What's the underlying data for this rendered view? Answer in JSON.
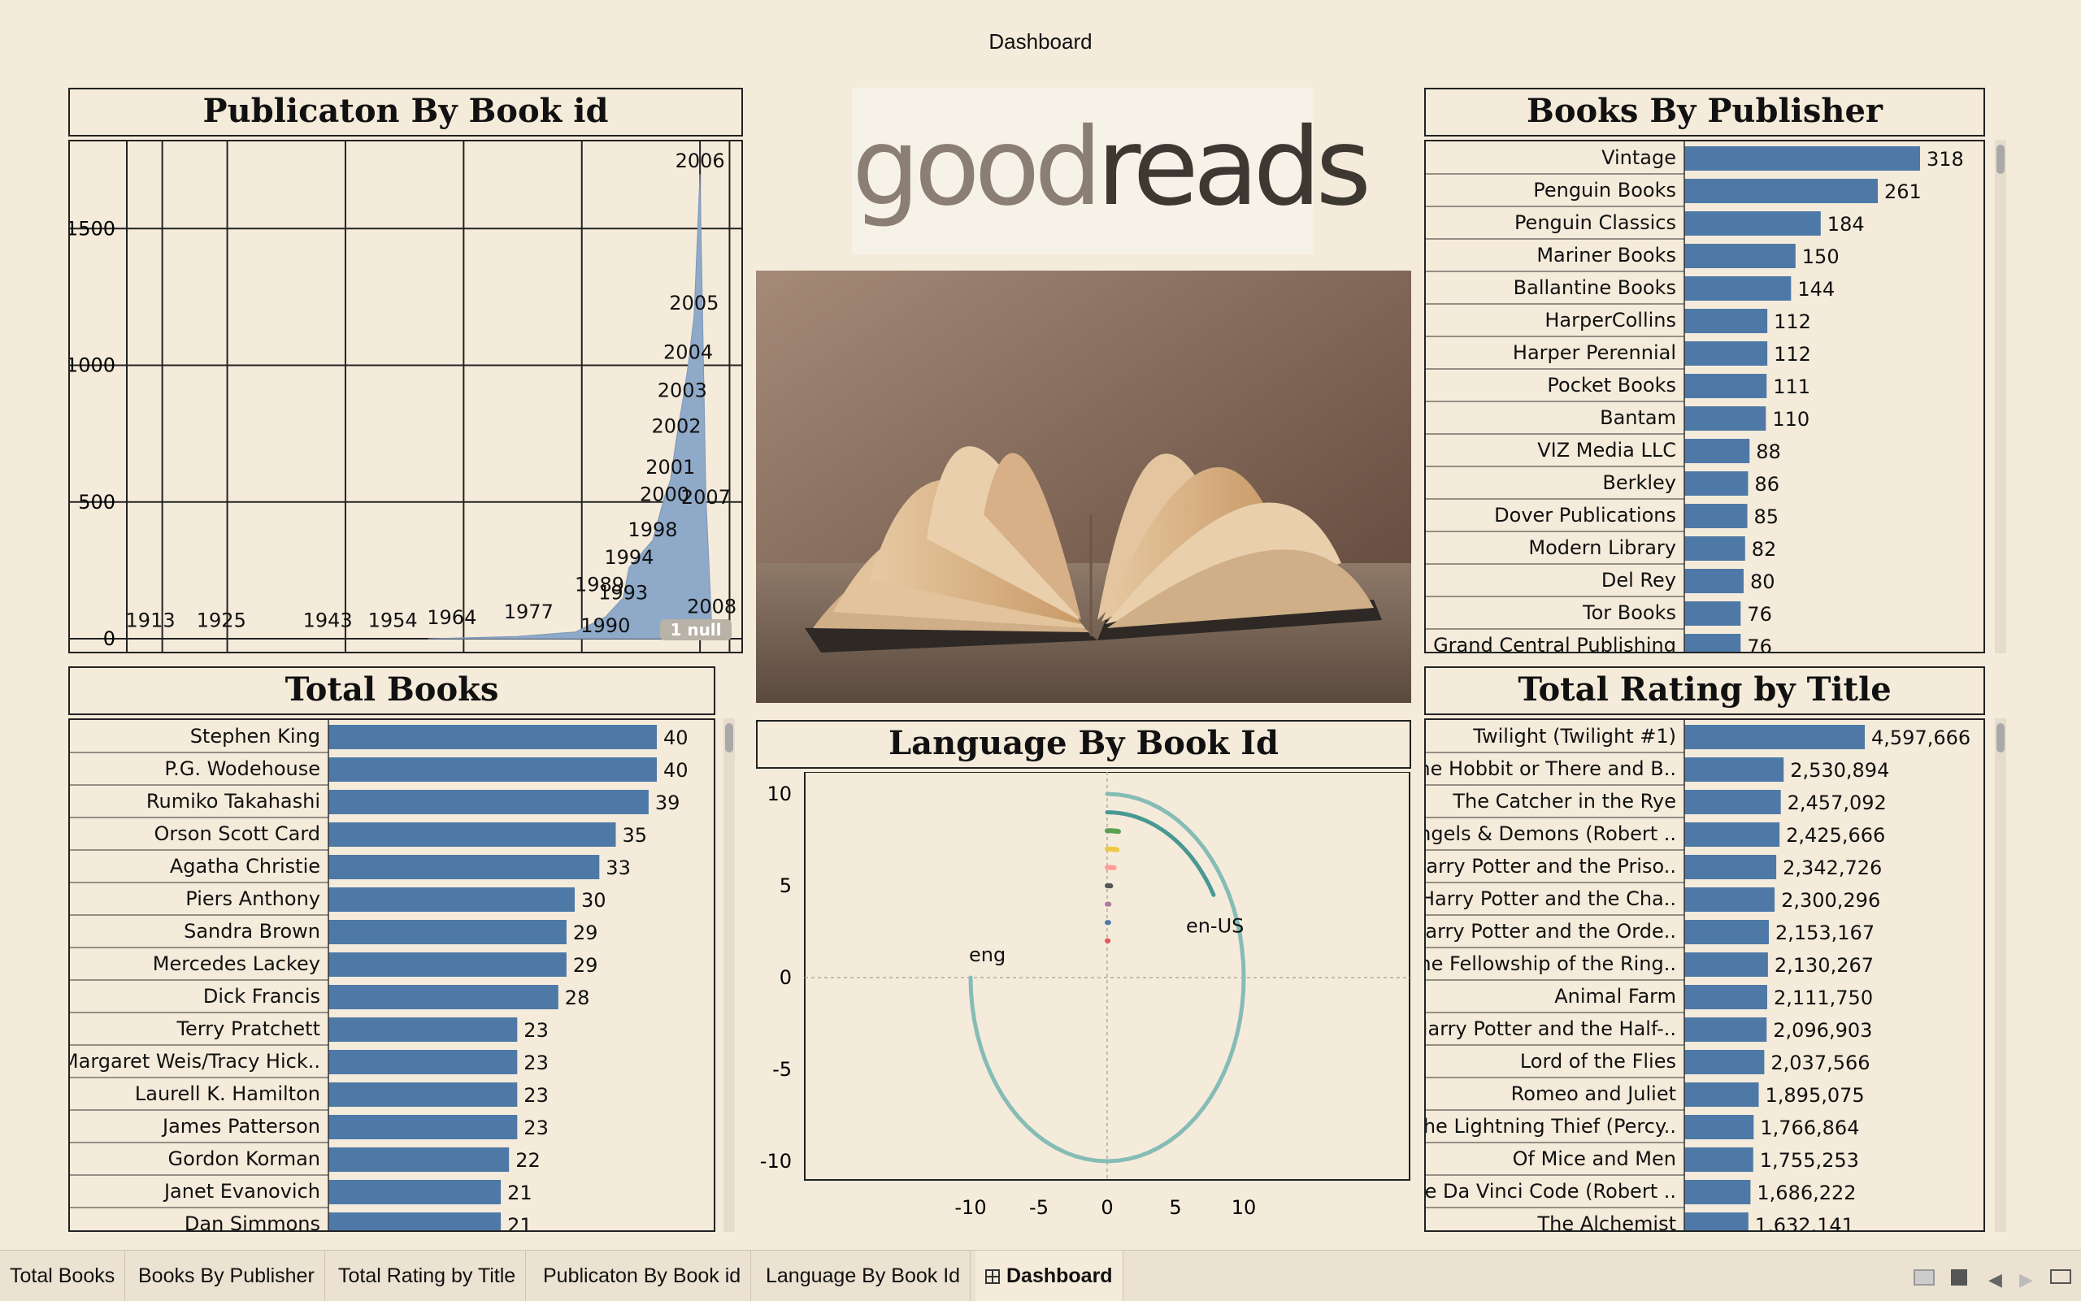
{
  "dashboard_title": "Dashboard",
  "panels": {
    "publication": "Publicaton By Book id",
    "publisher": "Books By Publisher",
    "total_books": "Total Books",
    "language": "Language By Book Id",
    "rating": "Total Rating by Title"
  },
  "logo": {
    "part1": "good",
    "part2": "reads"
  },
  "photo": {
    "subject": "open-book-photo"
  },
  "tabs": [
    "Total Books",
    "Books By Publisher",
    "Total Rating by Title",
    "Publicaton By Book id",
    "Language By Book Id",
    "Dashboard"
  ],
  "active_tab": "Dashboard",
  "icons": {
    "tab_active": "dashboard-grid-icon",
    "nav": [
      "layout-icon",
      "square-icon",
      "prev-icon",
      "next-icon",
      "present-icon"
    ]
  },
  "colors": {
    "bar": "#4e79a7",
    "area": "#8fa9c8",
    "background": "#f5ebda",
    "lang_main": "#86bcb6",
    "lang_second": "#499894"
  },
  "chart_data": [
    {
      "type": "area",
      "title": "Publicaton By Book id",
      "ylim": [
        0,
        1700
      ],
      "y_ticks": [
        0,
        500,
        1000,
        1500
      ],
      "series": [
        {
          "points": [
            {
              "x": 1990,
              "y": 80
            },
            {
              "x": 1993,
              "y": 150
            },
            {
              "x": 1994,
              "y": 260
            },
            {
              "x": 1998,
              "y": 360
            },
            {
              "x": 2000,
              "y": 520
            },
            {
              "x": 2001,
              "y": 580
            },
            {
              "x": 2002,
              "y": 730
            },
            {
              "x": 2003,
              "y": 860
            },
            {
              "x": 2004,
              "y": 1000
            },
            {
              "x": 2005,
              "y": 1180
            },
            {
              "x": 2006,
              "y": 1700
            },
            {
              "x": 2007,
              "y": 520
            },
            {
              "x": 2008,
              "y": 40
            }
          ]
        }
      ],
      "labels": [
        {
          "text": "2006",
          "x": 2006,
          "y": 1700
        },
        {
          "text": "2005",
          "x": 2005,
          "y": 1180
        },
        {
          "text": "2004",
          "x": 2004,
          "y": 1000
        },
        {
          "text": "2003",
          "x": 2003,
          "y": 860
        },
        {
          "text": "2002",
          "x": 2002,
          "y": 730
        },
        {
          "text": "2001",
          "x": 2001,
          "y": 580
        },
        {
          "text": "2000",
          "x": 2000,
          "y": 480
        },
        {
          "text": "2007",
          "x": 2007,
          "y": 470
        },
        {
          "text": "1998",
          "x": 1998,
          "y": 350
        },
        {
          "text": "1994",
          "x": 1994,
          "y": 250
        },
        {
          "text": "1989",
          "x": 1989,
          "y": 150
        },
        {
          "text": "1993",
          "x": 1993,
          "y": 120
        },
        {
          "text": "1977",
          "x": 1977,
          "y": 50
        },
        {
          "text": "2008",
          "x": 2008,
          "y": 70
        },
        {
          "text": "1913",
          "x": 1913,
          "y": 20
        },
        {
          "text": "1925",
          "x": 1925,
          "y": 20
        },
        {
          "text": "1943",
          "x": 1943,
          "y": 20
        },
        {
          "text": "1954",
          "x": 1954,
          "y": 20
        },
        {
          "text": "1964",
          "x": 1964,
          "y": 30
        },
        {
          "text": "1990",
          "x": 1990,
          "y": 0
        }
      ],
      "null_badge": "1 null"
    },
    {
      "type": "bar",
      "title": "Books By Publisher",
      "categories": [
        "Vintage",
        "Penguin Books",
        "Penguin Classics",
        "Mariner Books",
        "Ballantine Books",
        "HarperCollins",
        "Harper Perennial",
        "Pocket Books",
        "Bantam",
        "VIZ Media LLC",
        "Berkley",
        "Dover Publications",
        "Modern Library",
        "Del Rey",
        "Tor Books",
        "Grand Central Publishing"
      ],
      "values": [
        318,
        261,
        184,
        150,
        144,
        112,
        112,
        111,
        110,
        88,
        86,
        85,
        82,
        80,
        76,
        76
      ],
      "labels": [
        "318",
        "261",
        "184",
        "150",
        "144",
        "112",
        "112",
        "111",
        "110",
        "88",
        "86",
        "85",
        "82",
        "80",
        "76",
        "76"
      ],
      "max": 318
    },
    {
      "type": "bar",
      "title": "Total Books",
      "categories": [
        "Stephen King",
        "P.G. Wodehouse",
        "Rumiko Takahashi",
        "Orson Scott Card",
        "Agatha Christie",
        "Piers Anthony",
        "Sandra Brown",
        "Mercedes Lackey",
        "Dick Francis",
        "Terry Pratchett",
        "Margaret Weis/Tracy Hick..",
        "Laurell K. Hamilton",
        "James Patterson",
        "Gordon Korman",
        "Janet Evanovich",
        "Dan Simmons"
      ],
      "values": [
        40,
        40,
        39,
        35,
        33,
        30,
        29,
        29,
        28,
        23,
        23,
        23,
        23,
        22,
        21,
        21
      ],
      "labels": [
        "40",
        "40",
        "39",
        "35",
        "33",
        "30",
        "29",
        "29",
        "28",
        "23",
        "23",
        "23",
        "23",
        "22",
        "21",
        "21"
      ],
      "max": 40
    },
    {
      "type": "bar",
      "title": "Total Rating by Title",
      "categories": [
        "Twilight (Twilight  #1)",
        "The Hobbit  or There and B..",
        "The Catcher in the Rye",
        "Angels & Demons (Robert ..",
        "Harry Potter and the Priso..",
        "Harry Potter and the Cha..",
        "Harry Potter and the Orde..",
        "The Fellowship of the Ring..",
        "Animal Farm",
        "Harry Potter and the Half-..",
        "Lord of the Flies",
        "Romeo and Juliet",
        "The Lightning Thief (Percy..",
        "Of Mice and Men",
        "The Da Vinci Code (Robert ..",
        "The Alchemist"
      ],
      "values": [
        4597666,
        2530894,
        2457092,
        2425666,
        2342726,
        2300296,
        2153167,
        2130267,
        2111750,
        2096903,
        2037566,
        1895075,
        1766864,
        1755253,
        1686222,
        1632141
      ],
      "labels": [
        "4,597,666",
        "2,530,894",
        "2,457,092",
        "2,425,666",
        "2,342,726",
        "2,300,296",
        "2,153,167",
        "2,130,267",
        "2,111,750",
        "2,096,903",
        "2,037,566",
        "1,895,075",
        "1,766,864",
        "1,755,253",
        "1,686,222",
        "1,632,141"
      ],
      "max": 4597666
    },
    {
      "type": "radial-line",
      "title": "Language By Book Id",
      "xlim": [
        -11,
        11
      ],
      "ylim": [
        -11,
        11
      ],
      "x_ticks": [
        -10,
        -5,
        0,
        5,
        10
      ],
      "y_ticks": [
        -10,
        -5,
        0,
        5,
        10
      ],
      "series": [
        {
          "label": "eng",
          "radius": 10,
          "sweep_deg": 270,
          "color": "#86bcb6"
        },
        {
          "label": "en-US",
          "radius": 9,
          "sweep_deg": 60,
          "color": "#499894"
        },
        {
          "label": "",
          "radius": 8,
          "sweep_deg": 6,
          "color": "#59a14f"
        },
        {
          "label": "",
          "radius": 7,
          "sweep_deg": 6,
          "color": "#edc948"
        },
        {
          "label": "",
          "radius": 6,
          "sweep_deg": 5,
          "color": "#ff9d9a"
        },
        {
          "label": "",
          "radius": 5,
          "sweep_deg": 3,
          "color": "#555555"
        },
        {
          "label": "",
          "radius": 4,
          "sweep_deg": 2,
          "color": "#b07aa1"
        },
        {
          "label": "",
          "radius": 3,
          "sweep_deg": 2,
          "color": "#4e79a7"
        },
        {
          "label": "",
          "radius": 2,
          "sweep_deg": 2,
          "color": "#e15759"
        }
      ]
    }
  ]
}
